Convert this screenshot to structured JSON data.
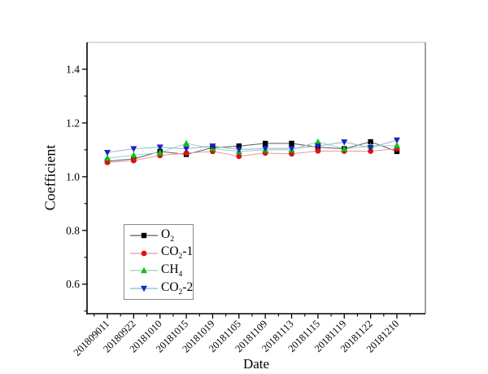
{
  "chart_data": {
    "type": "line",
    "title": "",
    "xlabel": "Date",
    "ylabel": "Coefficient",
    "categories": [
      "201809011",
      "20180922",
      "20181010",
      "20181015",
      "20181019",
      "20181105",
      "20181109",
      "20181113",
      "20181115",
      "20181119",
      "20181122",
      "20181210"
    ],
    "series": [
      {
        "label_pre": "O",
        "label_sub": "2",
        "label_post": "",
        "marker": "square",
        "marker_color": "#000000",
        "line_color": "#5a5a5a",
        "values": [
          1.058,
          1.066,
          1.094,
          1.083,
          1.108,
          1.114,
          1.124,
          1.124,
          1.11,
          1.104,
          1.13,
          1.094
        ]
      },
      {
        "label_pre": "CO",
        "label_sub": "2",
        "label_post": "-1",
        "marker": "circle",
        "marker_color": "#dd1111",
        "line_color": "#e89a9a",
        "values": [
          1.053,
          1.06,
          1.079,
          1.088,
          1.094,
          1.076,
          1.088,
          1.085,
          1.096,
          1.095,
          1.095,
          1.104
        ]
      },
      {
        "label_pre": "CH",
        "label_sub": "4",
        "label_post": "",
        "marker": "triangle-up",
        "marker_color": "#0fc00f",
        "line_color": "#9ecfc2",
        "values": [
          1.069,
          1.08,
          1.09,
          1.124,
          1.105,
          1.094,
          1.1,
          1.1,
          1.13,
          1.104,
          1.114,
          1.116
        ]
      },
      {
        "label_pre": "CO",
        "label_sub": "2",
        "label_post": "-2",
        "marker": "triangle-down",
        "marker_color": "#1626c4",
        "line_color": "#90b6cd",
        "values": [
          1.09,
          1.104,
          1.11,
          1.104,
          1.114,
          1.101,
          1.105,
          1.105,
          1.114,
          1.129,
          1.108,
          1.136
        ]
      }
    ],
    "ylim": [
      0.49,
      1.5
    ],
    "y_major_ticks": [
      0.6,
      0.8,
      1.0,
      1.2,
      1.4
    ],
    "y_minor_ticks": [
      0.5,
      0.7,
      0.9,
      1.1,
      1.3
    ],
    "grid": false,
    "legend_position": "lower-left-inside",
    "frame": {
      "axis_color": "#000000",
      "top_border_color": "#cfcfcf",
      "right_border_color": "#8a8a8a"
    }
  }
}
